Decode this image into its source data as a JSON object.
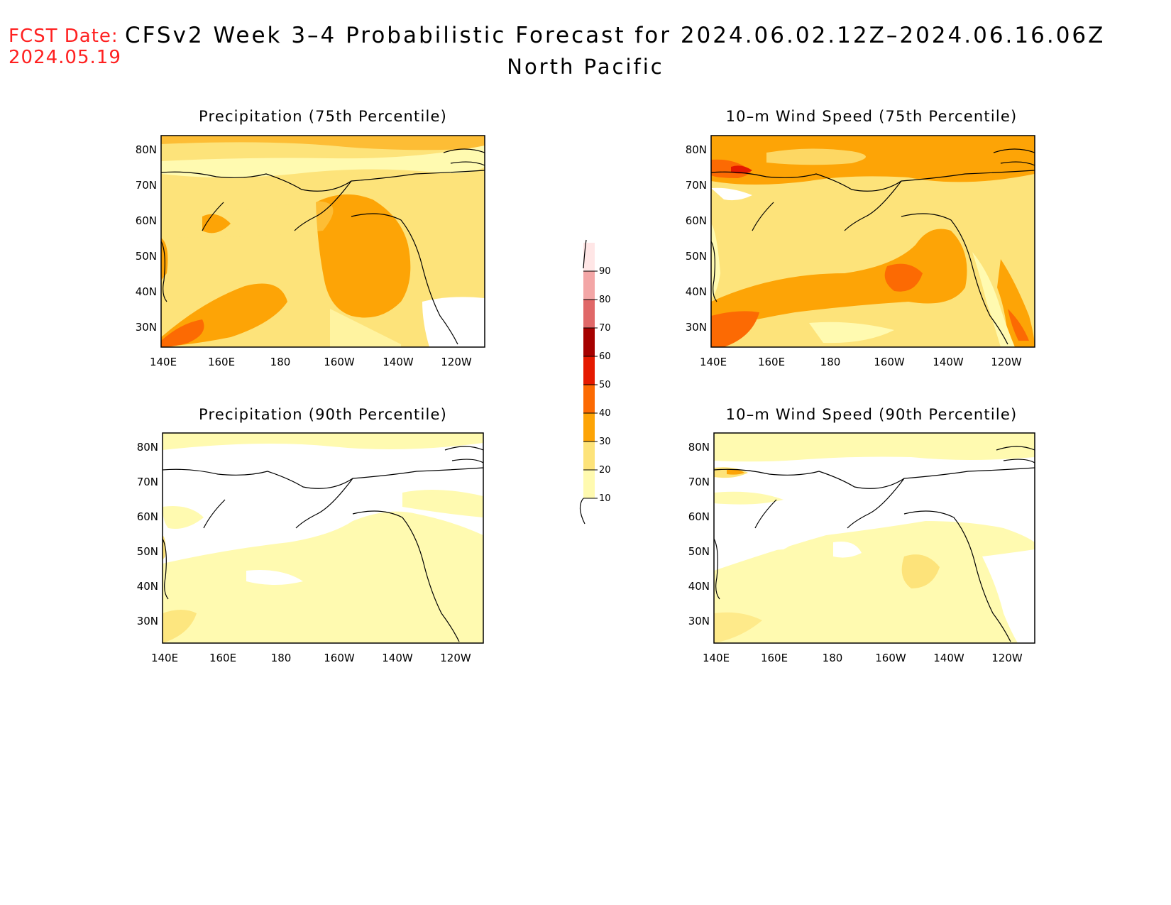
{
  "header": {
    "fcst_label": "FCST Date:",
    "fcst_date": "2024.05.19",
    "title": "CFSv2 Week 3–4 Probabilistic Forecast for 2024.06.02.12Z–2024.06.16.06Z",
    "region": "North Pacific"
  },
  "panels": [
    {
      "id": "precip75",
      "title": "Precipitation (75th Percentile)"
    },
    {
      "id": "wind75",
      "title": "10–m Wind Speed (75th Percentile)"
    },
    {
      "id": "precip90",
      "title": "Precipitation (90th Percentile)"
    },
    {
      "id": "wind90",
      "title": "10–m Wind Speed (90th Percentile)"
    }
  ],
  "axes": {
    "lon_ticks": [
      "140E",
      "160E",
      "180",
      "160W",
      "140W",
      "120W"
    ],
    "lat_ticks": [
      "80N",
      "70N",
      "60N",
      "50N",
      "40N",
      "30N"
    ]
  },
  "colorbar": {
    "levels": [
      "10",
      "20",
      "30",
      "40",
      "50",
      "60",
      "70",
      "80",
      "90"
    ],
    "colors": [
      "#fffab0",
      "#fde37a",
      "#fda406",
      "#fc6a03",
      "#e51a00",
      "#a60100",
      "#e06868",
      "#f3a6a6",
      "#ffe6e6"
    ]
  }
}
